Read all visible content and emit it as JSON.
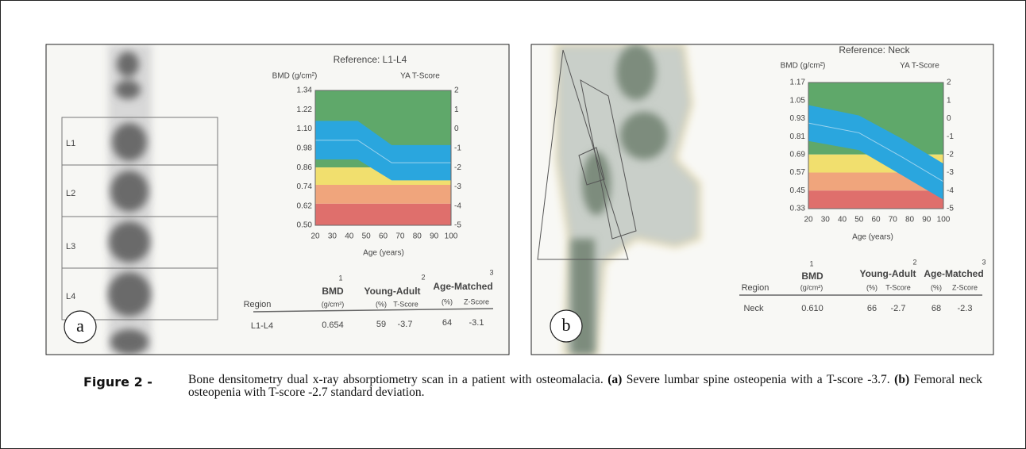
{
  "panels": [
    {
      "label": "a",
      "reference": "Reference: L1-L4",
      "y_axis_label": "BMD (g/cm²)",
      "y2_axis_label": "YA T-Score",
      "yticks": [
        "1.34",
        "1.22",
        "1.10",
        "0.98",
        "0.86",
        "0.74",
        "0.62",
        "0.50"
      ],
      "y2ticks": [
        "2",
        "1",
        "0",
        "-1",
        "-2",
        "-3",
        "-4",
        "-5"
      ],
      "xticks": [
        "20",
        "30",
        "40",
        "50",
        "60",
        "70",
        "80",
        "90",
        "100"
      ],
      "x_axis_label": "Age (years)",
      "regions": [
        "L1",
        "L2",
        "L3",
        "L4"
      ],
      "table": {
        "header": {
          "region": "Region",
          "bmd": "BMD",
          "bmd_note": "1",
          "bmd_unit": "(g/cm²)",
          "young_adult": "Young-Adult",
          "young_adult_note": "2",
          "ya_pct": "(%)",
          "ya_t": "T-Score",
          "age_matched": "Age-Matched",
          "age_matched_note": "3",
          "am_pct": "(%)",
          "am_z": "Z-Score"
        },
        "row": {
          "region": "L1-L4",
          "bmd": "0.654",
          "ya_pct": "59",
          "ya_t": "-3.7",
          "am_pct": "64",
          "am_z": "-3.1"
        }
      }
    },
    {
      "label": "b",
      "reference": "Reference: Neck",
      "y_axis_label": "BMD (g/cm²)",
      "y2_axis_label": "YA T-Score",
      "yticks": [
        "1.17",
        "1.05",
        "0.93",
        "0.81",
        "0.69",
        "0.57",
        "0.45",
        "0.33"
      ],
      "y2ticks": [
        "2",
        "1",
        "0",
        "-1",
        "-2",
        "-3",
        "-4",
        "-5"
      ],
      "xticks": [
        "20",
        "30",
        "40",
        "50",
        "60",
        "70",
        "80",
        "90",
        "100"
      ],
      "x_axis_label": "Age (years)",
      "table": {
        "header": {
          "region": "Region",
          "bmd": "BMD",
          "bmd_note": "1",
          "bmd_unit": "(g/cm²)",
          "young_adult": "Young-Adult",
          "young_adult_note": "2",
          "ya_pct": "(%)",
          "ya_t": "T-Score",
          "age_matched": "Age-Matched",
          "age_matched_note": "3",
          "am_pct": "(%)",
          "am_z": "Z-Score"
        },
        "row": {
          "region": "Neck",
          "bmd": "0.610",
          "ya_pct": "66",
          "ya_t": "-2.7",
          "am_pct": "68",
          "am_z": "-2.3"
        }
      }
    }
  ],
  "caption": {
    "label": "Figure 2 -",
    "text_1": "Bone densitometry dual x-ray absorptiometry scan in a patient with osteomalacia.",
    "mark_a": "(a)",
    "text_2": "Severe lumbar spine osteopenia with a T-score -3.7.",
    "mark_b": "(b)",
    "text_3": "Femoral neck osteopenia with T-score -2.7 standard deviation."
  }
}
